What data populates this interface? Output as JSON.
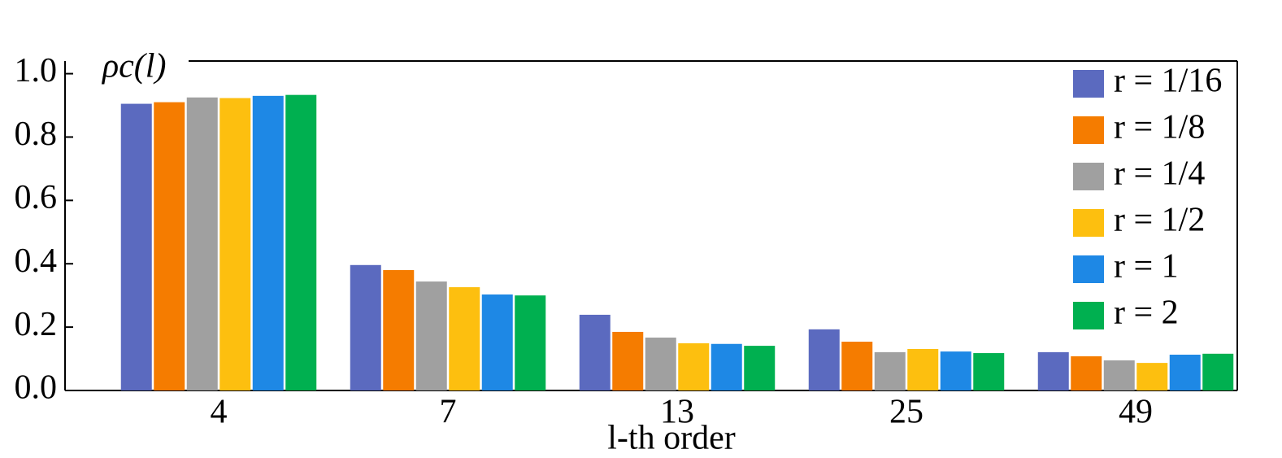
{
  "chart_data": {
    "type": "bar",
    "y_label": "ρc(l)",
    "x_label": "l-th order",
    "categories": [
      "4",
      "7",
      "13",
      "25",
      "49"
    ],
    "series": [
      {
        "name": "r = 1/16",
        "color": "#5b6abf",
        "values": [
          0.905,
          0.396,
          0.239,
          0.193,
          0.121
        ]
      },
      {
        "name": "r = 1/8",
        "color": "#f57c00",
        "values": [
          0.91,
          0.38,
          0.185,
          0.154,
          0.108
        ]
      },
      {
        "name": "r = 1/4",
        "color": "#a0a0a0",
        "values": [
          0.925,
          0.344,
          0.167,
          0.121,
          0.095
        ]
      },
      {
        "name": "r = 1/2",
        "color": "#fdbf0f",
        "values": [
          0.923,
          0.326,
          0.149,
          0.131,
          0.087
        ]
      },
      {
        "name": "r = 1",
        "color": "#1e88e5",
        "values": [
          0.93,
          0.303,
          0.147,
          0.123,
          0.113
        ]
      },
      {
        "name": "r = 2",
        "color": "#00b050",
        "values": [
          0.933,
          0.3,
          0.141,
          0.118,
          0.116
        ]
      }
    ],
    "ylim": [
      0,
      1.04
    ],
    "yticks": [
      {
        "value": 0,
        "label": "0.0"
      },
      {
        "value": 0.2,
        "label": "0.2"
      },
      {
        "value": 0.4,
        "label": "0.4"
      },
      {
        "value": 0.6,
        "label": "0.6"
      },
      {
        "value": 0.8,
        "label": "0.8"
      },
      {
        "value": 1.0,
        "label": "1.0"
      }
    ],
    "legend": "upper right"
  }
}
